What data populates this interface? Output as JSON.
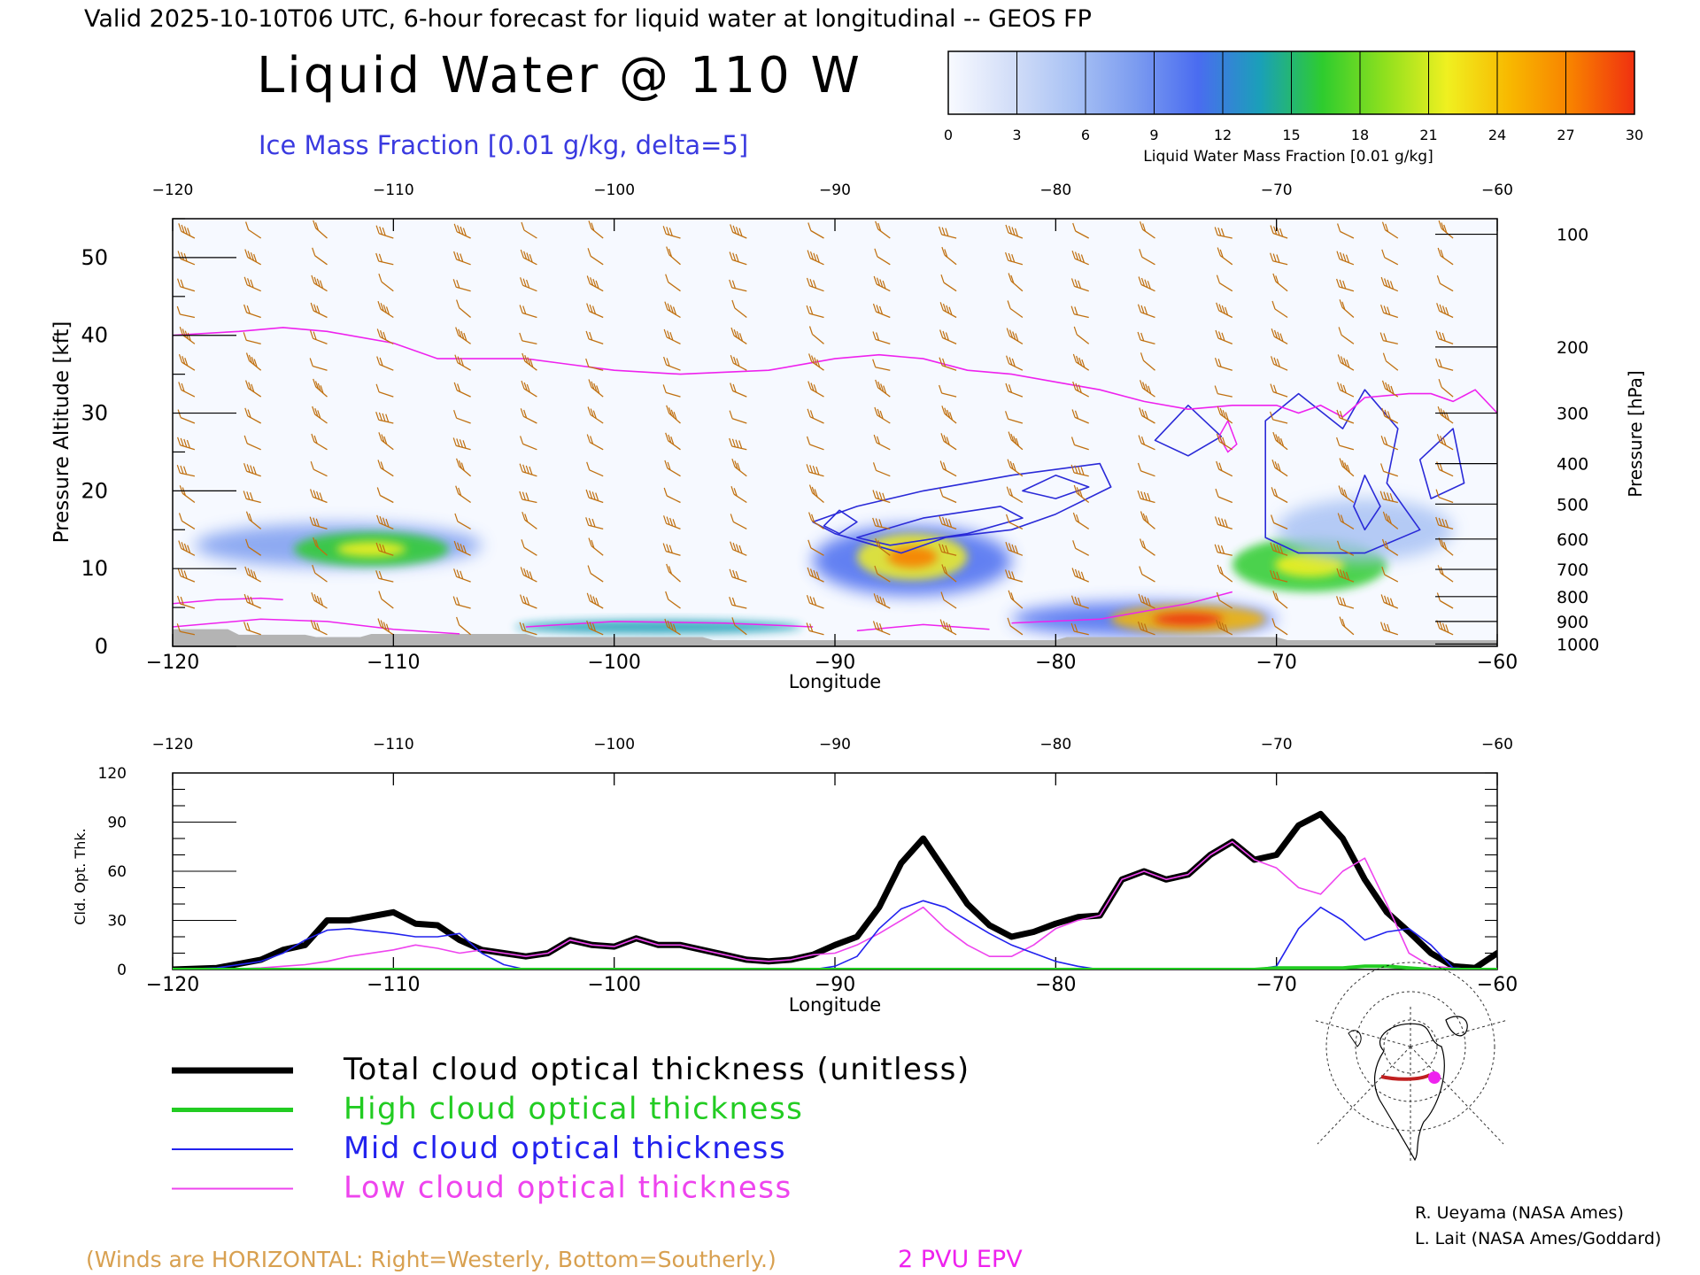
{
  "header": {
    "valid_line": "Valid 2025-10-10T06 UTC, 6-hour forecast for liquid water at longitudinal -- GEOS FP",
    "title": "Liquid Water @ 110 W",
    "subtitle": "Ice Mass Fraction [0.01 g/kg, delta=5]"
  },
  "colorbar": {
    "ticks": [
      "0",
      "3",
      "6",
      "9",
      "12",
      "15",
      "18",
      "21",
      "24",
      "27",
      "30"
    ],
    "colors": [
      "#f8faff",
      "#d3def8",
      "#a9c2f4",
      "#7c9cf0",
      "#4a6cf0",
      "#1aa0b8",
      "#2ecc2e",
      "#8fe01e",
      "#f0f020",
      "#f8b800",
      "#f88000",
      "#f03010"
    ],
    "label": "Liquid Water Mass Fraction [0.01 g/kg]"
  },
  "colors": {
    "winds": "#c07010",
    "ice_contour": "#2a2ad8",
    "epv": "#ee22ee",
    "total": "#000000",
    "high": "#22cc22",
    "mid": "#2222ee",
    "low": "#ee44ee",
    "terrain": "#b4b4b4"
  },
  "icons": {
    "wind_barb": "wind-barb-icon",
    "locator_map": "north-polar-map-icon"
  },
  "chart_data": [
    {
      "type": "heatmap",
      "xlabel": "Longitude",
      "ylabel": "Pressure Altitude [kft]",
      "ylabel_right": "Pressure [hPa]",
      "xlim": [
        -120,
        -60
      ],
      "ylim": [
        0,
        55
      ],
      "xticks": [
        "−120",
        "−110",
        "−100",
        "−90",
        "−80",
        "−70",
        "−60"
      ],
      "yticks": [
        "0",
        "10",
        "20",
        "30",
        "40",
        "50"
      ],
      "pressure_ticks": [
        {
          "label": "100",
          "kft": 53
        },
        {
          "label": "200",
          "kft": 38.5
        },
        {
          "label": "300",
          "kft": 30
        },
        {
          "label": "400",
          "kft": 23.5
        },
        {
          "label": "500",
          "kft": 18.3
        },
        {
          "label": "600",
          "kft": 13.8
        },
        {
          "label": "700",
          "kft": 9.9
        },
        {
          "label": "800",
          "kft": 6.4
        },
        {
          "label": "900",
          "kft": 3.2
        },
        {
          "label": "1000",
          "kft": 0.3
        }
      ],
      "liquid_water_regions": [
        {
          "lon": -112.5,
          "kft": 13,
          "rx": 6.5,
          "ry": 2.8,
          "value": 8
        },
        {
          "lon": -111,
          "kft": 12.5,
          "rx": 3.5,
          "ry": 2.2,
          "value": 17
        },
        {
          "lon": -98,
          "kft": 2.5,
          "rx": 6.5,
          "ry": 0.9,
          "value": 13
        },
        {
          "lon": -86.5,
          "kft": 11,
          "rx": 4.5,
          "ry": 4.5,
          "value": 10
        },
        {
          "lon": -86.5,
          "kft": 11.5,
          "rx": 2.5,
          "ry": 3,
          "value": 22
        },
        {
          "lon": -76,
          "kft": 3.5,
          "rx": 6,
          "ry": 2.2,
          "value": 12
        },
        {
          "lon": -74,
          "kft": 3.5,
          "rx": 3.5,
          "ry": 1.8,
          "value": 24
        },
        {
          "lon": -68.5,
          "kft": 10.5,
          "rx": 3.5,
          "ry": 3.5,
          "value": 15
        },
        {
          "lon": -66,
          "kft": 15,
          "rx": 4,
          "ry": 4,
          "value": 6
        }
      ],
      "epv_2pvu": {
        "lon": [
          -120,
          -117,
          -115,
          -113,
          -110,
          -108,
          -104,
          -100,
          -97,
          -93,
          -90,
          -88,
          -86,
          -84,
          -82,
          -80,
          -78,
          -76,
          -74,
          -72,
          -70,
          -69,
          -68,
          -67,
          -66,
          -64,
          -63,
          -62,
          -61,
          -60
        ],
        "kft": [
          40,
          40.5,
          41,
          40.5,
          39,
          37,
          37,
          35.5,
          35,
          35.5,
          37,
          37.5,
          37,
          35.5,
          35,
          34,
          33,
          31.5,
          30.5,
          31,
          31,
          30,
          31,
          29.5,
          32,
          32.5,
          32.5,
          31.5,
          33,
          30
        ]
      },
      "epv_low_lines": [
        {
          "lon": [
            -120,
            -118,
            -116,
            -115
          ],
          "kft": [
            5.5,
            6,
            6.2,
            6
          ]
        },
        {
          "lon": [
            -120,
            -116,
            -113,
            -110,
            -107
          ],
          "kft": [
            2.5,
            3.5,
            3.2,
            2.2,
            1.6
          ]
        },
        {
          "lon": [
            -104,
            -100,
            -95,
            -91
          ],
          "kft": [
            2.5,
            3.2,
            3,
            2.5
          ]
        },
        {
          "lon": [
            -89,
            -86,
            -83
          ],
          "kft": [
            2,
            2.8,
            2.2
          ]
        },
        {
          "lon": [
            -82,
            -78,
            -74,
            -72
          ],
          "kft": [
            3,
            3.5,
            5.5,
            7
          ]
        },
        {
          "lon": [
            -72.6,
            -72.2,
            -71.8,
            -72.2,
            -72.6
          ],
          "kft": [
            27,
            29,
            26,
            25,
            27
          ]
        }
      ],
      "ice_contours": [
        [
          [
            -91,
            16
          ],
          [
            -89,
            18
          ],
          [
            -86,
            20
          ],
          [
            -82,
            22
          ],
          [
            -78,
            23.5
          ],
          [
            -77.5,
            20.5
          ],
          [
            -80,
            17
          ],
          [
            -82,
            15
          ],
          [
            -85,
            14
          ],
          [
            -87,
            12
          ],
          [
            -90,
            14.5
          ]
        ],
        [
          [
            -89,
            14
          ],
          [
            -86,
            16.5
          ],
          [
            -82.5,
            18
          ],
          [
            -81.5,
            16.5
          ],
          [
            -84,
            14.5
          ],
          [
            -87.5,
            13
          ]
        ],
        [
          [
            -90.5,
            15.5
          ],
          [
            -89.8,
            17.5
          ],
          [
            -89,
            16
          ],
          [
            -89.8,
            14.5
          ]
        ],
        [
          [
            -81.5,
            20
          ],
          [
            -80,
            22
          ],
          [
            -78.5,
            20.5
          ],
          [
            -80,
            19
          ]
        ],
        [
          [
            -75.5,
            26.5
          ],
          [
            -74,
            31
          ],
          [
            -72.5,
            27
          ],
          [
            -74,
            24.5
          ]
        ],
        [
          [
            -70.5,
            14
          ],
          [
            -70.5,
            29
          ],
          [
            -69,
            32.5
          ],
          [
            -67,
            28
          ],
          [
            -66,
            33
          ],
          [
            -64.5,
            28
          ],
          [
            -65,
            21
          ],
          [
            -63.5,
            15
          ],
          [
            -66,
            12
          ],
          [
            -69,
            12
          ]
        ],
        [
          [
            -66.5,
            18
          ],
          [
            -66,
            22
          ],
          [
            -65.3,
            18
          ],
          [
            -66,
            15
          ]
        ],
        [
          [
            -63.5,
            24
          ],
          [
            -62,
            28
          ],
          [
            -61.5,
            21
          ],
          [
            -63,
            19
          ]
        ]
      ],
      "wind_columns_lon": [
        -119,
        -116,
        -113,
        -110,
        -106.5,
        -103.5,
        -100.5,
        -97,
        -94,
        -90.5,
        -87.5,
        -84.5,
        -81.5,
        -78.5,
        -75.5,
        -72,
        -69.5,
        -66.5,
        -64.5,
        -62
      ],
      "annotation_winds": "(Winds are HORIZONTAL: Right=Westerly, Bottom=Southerly.)",
      "annotation_epv": "2 PVU EPV"
    },
    {
      "type": "line",
      "xlabel": "Longitude",
      "ylabel": "Cld. Opt. Thk.",
      "xlim": [
        -120,
        -60
      ],
      "ylim": [
        0,
        120
      ],
      "xticks": [
        "−120",
        "−110",
        "−100",
        "−90",
        "−80",
        "−70",
        "−60"
      ],
      "yticks": [
        "0",
        "30",
        "60",
        "90",
        "120"
      ],
      "x": [
        -120,
        -118,
        -116,
        -115,
        -114,
        -113,
        -112,
        -110,
        -109,
        -108,
        -107,
        -106,
        -105,
        -104,
        -103,
        -102,
        -101,
        -100,
        -99,
        -98,
        -97,
        -96,
        -95,
        -94,
        -93,
        -92,
        -91,
        -90,
        -89,
        -88,
        -87,
        -86,
        -85,
        -84,
        -83,
        -82,
        -81,
        -80,
        -79,
        -78,
        -77,
        -76,
        -75,
        -74,
        -73,
        -72,
        -71,
        -70,
        -69,
        -68,
        -67,
        -66,
        -65,
        -64,
        -63,
        -62,
        -61,
        -60
      ],
      "series": [
        {
          "name": "Total cloud optical thickness (unitless)",
          "values": [
            0,
            1,
            6,
            12,
            15,
            30,
            30,
            35,
            28,
            27,
            18,
            12,
            10,
            8,
            10,
            18,
            15,
            14,
            19,
            15,
            15,
            12,
            9,
            6,
            5,
            6,
            9,
            15,
            20,
            38,
            65,
            80,
            60,
            40,
            27,
            20,
            23,
            28,
            32,
            33,
            55,
            60,
            55,
            58,
            70,
            78,
            67,
            70,
            88,
            95,
            80,
            55,
            35,
            23,
            10,
            2,
            1,
            10
          ]
        },
        {
          "name": "High cloud optical thickness",
          "values": [
            0,
            0,
            0,
            0,
            0,
            0,
            0,
            0,
            0,
            0,
            0,
            0,
            0,
            0,
            0,
            0,
            0,
            0,
            0,
            0,
            0,
            0,
            0,
            0,
            0,
            0,
            0,
            0,
            0,
            0,
            0,
            0,
            0,
            0,
            0,
            0,
            0,
            0,
            0,
            0,
            0,
            0,
            0,
            0,
            0,
            0,
            0,
            1,
            1,
            1,
            1,
            2,
            2,
            1,
            0,
            0,
            0,
            0
          ]
        },
        {
          "name": "Mid cloud optical thickness",
          "values": [
            0,
            1,
            5,
            10,
            18,
            24,
            25,
            22,
            20,
            20,
            22,
            10,
            3,
            0,
            0,
            0,
            0,
            0,
            0,
            0,
            0,
            0,
            0,
            0,
            0,
            0,
            0,
            2,
            8,
            25,
            37,
            42,
            38,
            30,
            22,
            15,
            10,
            5,
            2,
            0,
            0,
            0,
            0,
            0,
            0,
            0,
            0,
            2,
            25,
            38,
            30,
            18,
            23,
            25,
            15,
            1,
            0,
            0
          ]
        },
        {
          "name": "Low cloud optical thickness",
          "values": [
            0,
            0,
            1,
            2,
            3,
            5,
            8,
            12,
            15,
            13,
            10,
            12,
            10,
            8,
            10,
            18,
            15,
            14,
            19,
            15,
            15,
            12,
            9,
            6,
            5,
            6,
            9,
            10,
            15,
            22,
            30,
            38,
            25,
            15,
            8,
            8,
            15,
            25,
            30,
            33,
            55,
            60,
            55,
            58,
            70,
            78,
            67,
            62,
            50,
            46,
            60,
            68,
            40,
            10,
            2,
            1,
            0,
            0
          ]
        }
      ],
      "legend_placement": "bottom-left"
    }
  ],
  "credits": {
    "line1": "R. Ueyama (NASA Ames)",
    "line2": "L. Lait (NASA Ames/Goddard)"
  }
}
